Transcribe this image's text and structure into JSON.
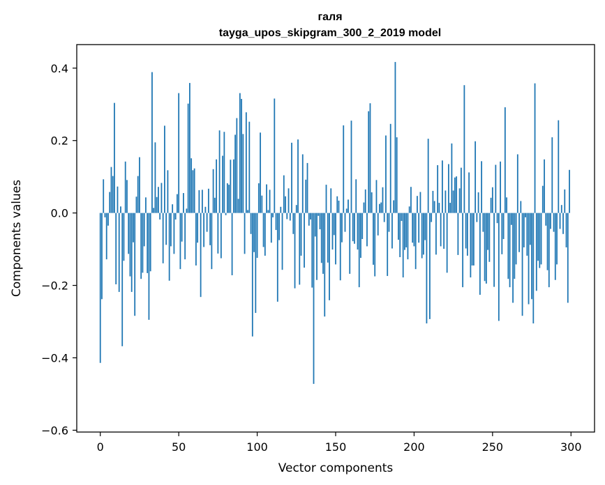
{
  "chart_data": {
    "type": "bar",
    "title": "галя",
    "subtitle": "tayga_upos_skipgram_300_2_2019 model",
    "xlabel": "Vector components",
    "ylabel": "Components values",
    "xlim": [
      -15,
      315
    ],
    "ylim": [
      -0.605,
      0.465
    ],
    "xticks": [
      0,
      50,
      100,
      150,
      200,
      250,
      300
    ],
    "yticks": [
      -0.6,
      -0.4,
      -0.2,
      0.0,
      0.2,
      0.4
    ],
    "ytick_labels": [
      "−0.6",
      "−0.4",
      "−0.2",
      "0.0",
      "0.2",
      "0.4"
    ],
    "bar_color": "#1f77b4",
    "values": [
      -0.414,
      -0.238,
      0.093,
      -0.012,
      -0.128,
      -0.035,
      0.058,
      0.127,
      0.102,
      0.304,
      -0.197,
      0.073,
      -0.218,
      0.018,
      -0.368,
      -0.132,
      0.142,
      0.091,
      -0.113,
      -0.175,
      -0.218,
      -0.081,
      -0.284,
      0.045,
      0.102,
      0.154,
      -0.182,
      -0.165,
      -0.092,
      0.043,
      -0.166,
      -0.295,
      -0.161,
      0.389,
      0.014,
      0.195,
      0.044,
      0.072,
      -0.018,
      0.083,
      -0.139,
      0.241,
      -0.088,
      0.118,
      -0.187,
      -0.092,
      0.024,
      -0.113,
      -0.018,
      0.052,
      0.331,
      -0.155,
      -0.079,
      0.055,
      -0.128,
      0.012,
      0.302,
      0.359,
      0.151,
      0.118,
      0.123,
      -0.145,
      -0.082,
      0.063,
      -0.232,
      0.064,
      -0.094,
      0.017,
      -0.052,
      0.067,
      -0.089,
      -0.155,
      0.121,
      0.042,
      0.148,
      -0.112,
      0.228,
      -0.125,
      0.158,
      0.224,
      -0.006,
      0.082,
      0.078,
      0.147,
      -0.172,
      0.148,
      0.216,
      0.262,
      0.039,
      0.331,
      0.315,
      0.218,
      -0.113,
      0.278,
      0.008,
      0.252,
      -0.058,
      -0.341,
      -0.108,
      -0.276,
      -0.124,
      0.082,
      0.222,
      0.048,
      -0.094,
      -0.118,
      0.079,
      0.008,
      0.064,
      -0.082,
      -0.012,
      0.316,
      -0.047,
      -0.245,
      -0.075,
      0.017,
      -0.157,
      0.104,
      0.046,
      -0.017,
      0.068,
      -0.021,
      0.194,
      -0.058,
      -0.208,
      0.022,
      0.203,
      -0.198,
      -0.118,
      0.162,
      -0.151,
      0.092,
      0.138,
      -0.035,
      -0.018,
      -0.206,
      -0.472,
      -0.065,
      -0.185,
      -0.008,
      -0.045,
      -0.138,
      -0.168,
      -0.286,
      0.078,
      -0.137,
      -0.241,
      0.068,
      -0.101,
      -0.061,
      -0.142,
      0.046,
      0.034,
      -0.186,
      -0.081,
      0.242,
      -0.052,
      0.012,
      0.037,
      -0.168,
      0.255,
      -0.078,
      -0.085,
      0.093,
      -0.101,
      -0.205,
      -0.124,
      -0.072,
      0.029,
      0.065,
      -0.092,
      0.281,
      0.303,
      0.057,
      -0.143,
      -0.175,
      0.091,
      -0.062,
      0.025,
      0.029,
      0.071,
      -0.025,
      0.214,
      -0.174,
      -0.052,
      0.246,
      -0.098,
      0.035,
      0.417,
      0.209,
      -0.074,
      -0.122,
      -0.022,
      -0.178,
      -0.102,
      -0.095,
      -0.128,
      0.018,
      0.072,
      -0.082,
      -0.092,
      -0.155,
      0.047,
      -0.082,
      0.058,
      -0.125,
      -0.115,
      -0.075,
      -0.305,
      0.205,
      -0.293,
      -0.025,
      0.061,
      0.033,
      -0.115,
      0.132,
      0.028,
      -0.092,
      0.145,
      -0.099,
      0.062,
      -0.165,
      0.135,
      0.028,
      0.192,
      0.062,
      0.098,
      0.101,
      -0.116,
      0.068,
      0.125,
      -0.205,
      0.353,
      -0.098,
      -0.118,
      0.112,
      -0.178,
      -0.145,
      -0.145,
      0.198,
      -0.025,
      0.057,
      -0.226,
      0.143,
      -0.052,
      -0.188,
      -0.195,
      -0.102,
      -0.135,
      0.042,
      0.071,
      -0.204,
      0.133,
      -0.028,
      -0.298,
      0.142,
      -0.114,
      -0.072,
      0.292,
      0.043,
      -0.182,
      -0.205,
      -0.033,
      -0.248,
      -0.182,
      -0.142,
      0.162,
      -0.108,
      0.033,
      -0.284,
      -0.095,
      -0.012,
      -0.118,
      -0.252,
      -0.088,
      -0.238,
      -0.305,
      0.358,
      -0.215,
      -0.132,
      -0.152,
      -0.142,
      0.075,
      0.148,
      -0.035,
      -0.158,
      -0.205,
      -0.044,
      0.209,
      -0.052,
      -0.185,
      -0.142,
      0.256,
      -0.044,
      0.022,
      -0.058,
      0.065,
      -0.095,
      -0.248,
      0.119
    ]
  }
}
